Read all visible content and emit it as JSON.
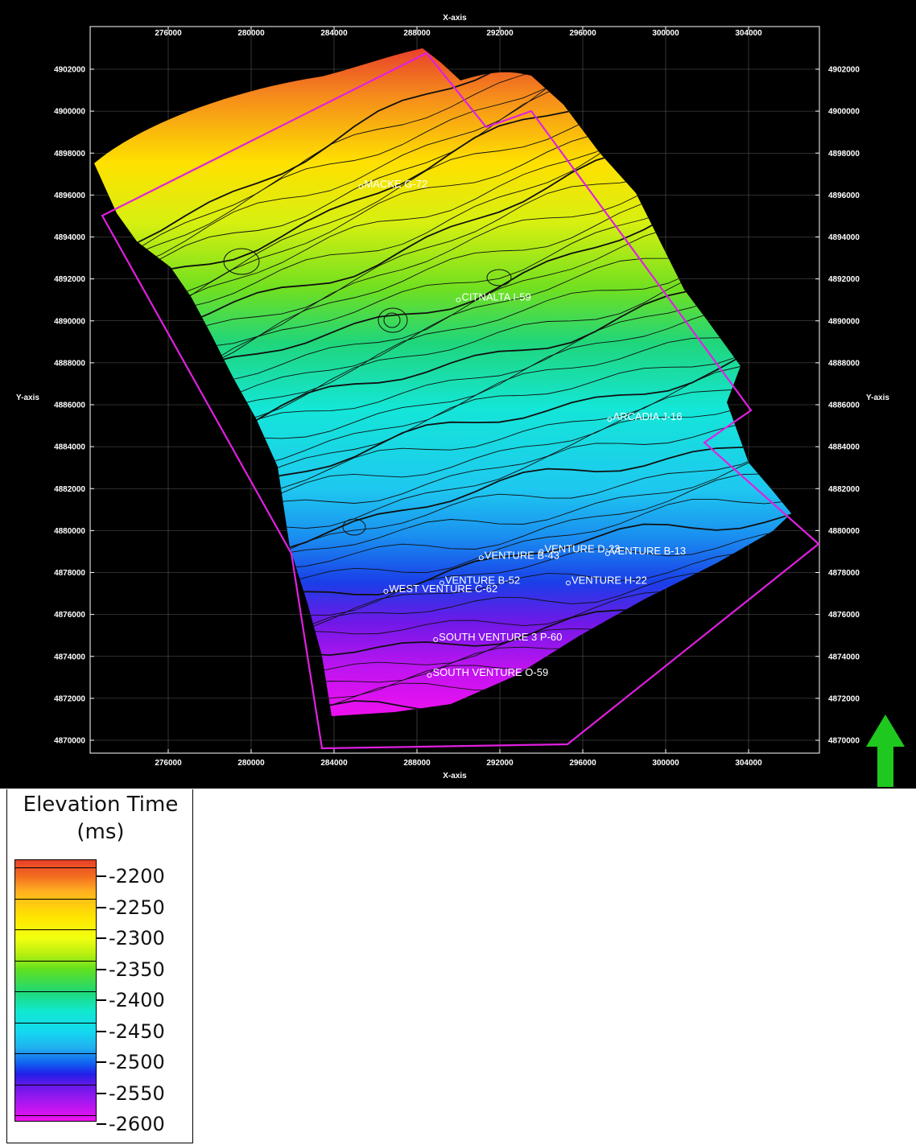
{
  "map": {
    "x_axis_title": "X-axis",
    "y_axis_title": "Y-axis",
    "x_ticks": [
      "276000",
      "280000",
      "284000",
      "288000",
      "292000",
      "296000",
      "300000",
      "304000"
    ],
    "y_ticks": [
      "4902000",
      "4900000",
      "4898000",
      "4896000",
      "4894000",
      "4892000",
      "4890000",
      "4888000",
      "4886000",
      "4884000",
      "4882000",
      "4880000",
      "4878000",
      "4876000",
      "4874000",
      "4872000",
      "4870000"
    ],
    "wells": [
      {
        "name": "MACKE G-72",
        "x": 285300,
        "y": 4896400
      },
      {
        "name": "CITNALTA I-59",
        "x": 290000,
        "y": 4891000
      },
      {
        "name": "ARCADIA J-16",
        "x": 297300,
        "y": 4885300
      },
      {
        "name": "VENTURE B-43",
        "x": 291100,
        "y": 4878700
      },
      {
        "name": "VENTURE D-23",
        "x": 294000,
        "y": 4879000
      },
      {
        "name": "VENTURE B-13",
        "x": 297200,
        "y": 4878900
      },
      {
        "name": "VENTURE B-52",
        "x": 289200,
        "y": 4877500
      },
      {
        "name": "WEST VENTURE C-62",
        "x": 286500,
        "y": 4877100
      },
      {
        "name": "VENTURE H-22",
        "x": 295300,
        "y": 4877500
      },
      {
        "name": "SOUTH VENTURE 3 P-60",
        "x": 288900,
        "y": 4874800
      },
      {
        "name": "SOUTH VENTURE O-59",
        "x": 288600,
        "y": 4873100
      }
    ],
    "colors": {
      "background": "#000000",
      "boundary": "#e020e0",
      "contour": "#101010",
      "well_label": "#ffffff"
    }
  },
  "legend": {
    "title": "Elevation Time (ms)",
    "entries": [
      "-2200",
      "-2250",
      "-2300",
      "-2350",
      "-2400",
      "-2450",
      "-2500",
      "-2550",
      "-2600"
    ]
  },
  "north_arrow": {
    "icon": "north-arrow-icon",
    "color": "#1ec81e"
  }
}
